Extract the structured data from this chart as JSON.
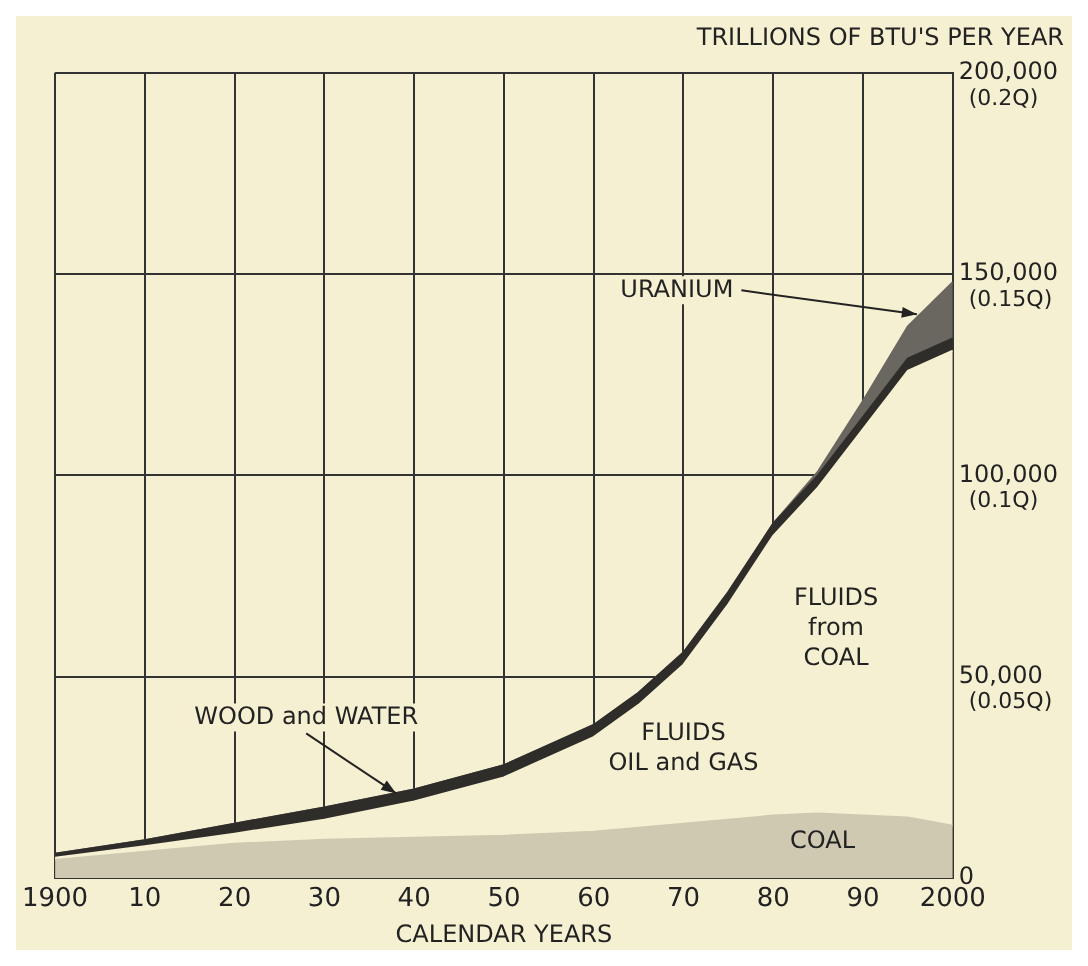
{
  "chart_data": {
    "type": "area",
    "stacked": true,
    "ylabel": "TRILLIONS OF BTU'S PER YEAR",
    "xlabel": "CALENDAR YEARS",
    "x": [
      1900,
      1910,
      1920,
      1930,
      1940,
      1950,
      1960,
      1965,
      1970,
      1975,
      1980,
      1985,
      1990,
      1995,
      2000
    ],
    "series": [
      {
        "color": "#cfc9b2",
        "values": [
          4500,
          6500,
          8500,
          9500,
          10000,
          10500,
          11500,
          12500,
          13500,
          14500,
          15500,
          16000,
          15500,
          15000,
          13000
        ]
      },
      {
        "color": "#f6f0d2",
        "values": [
          500,
          1400,
          2500,
          5000,
          9000,
          14500,
          23500,
          30500,
          39500,
          53500,
          69500,
          81000,
          96000,
          111000,
          118000
        ]
      },
      {
        "color": "#2f2d2a",
        "values": [
          1000,
          1500,
          2500,
          3000,
          3000,
          3000,
          3000,
          3000,
          3000,
          3000,
          3000,
          3000,
          3000,
          3000,
          3000
        ]
      },
      {
        "color": "#6a6660",
        "values": [
          0,
          0,
          0,
          0,
          0,
          0,
          0,
          0,
          0,
          0,
          0,
          1000,
          4000,
          8000,
          14000
        ]
      }
    ],
    "xlim": [
      1900,
      2000
    ],
    "xticks": [
      1900,
      {
        "value": 1910,
        "label": "10"
      },
      {
        "value": 1920,
        "label": "20"
      },
      {
        "value": 1930,
        "label": "30"
      },
      {
        "value": 1940,
        "label": "40"
      },
      {
        "value": 1950,
        "label": "50"
      },
      {
        "value": 1960,
        "label": "60"
      },
      {
        "value": 1970,
        "label": "70"
      },
      {
        "value": 1980,
        "label": "80"
      },
      {
        "value": 1990,
        "label": "90"
      },
      2000
    ],
    "ylim": [
      0,
      200000
    ],
    "yticks": [
      0,
      {
        "value": 50000,
        "label": "50,000"
      },
      {
        "value": 100000,
        "label": "100,000"
      },
      {
        "value": 150000,
        "label": "150,000"
      },
      {
        "value": 200000,
        "label": "200,000"
      }
    ],
    "y2lim": [
      0,
      0.2
    ],
    "y2ticks": [
      {
        "value": 0.05,
        "label": "(0.05Q)"
      },
      {
        "value": 0.1,
        "label": "(0.1Q)"
      },
      {
        "value": 0.15,
        "label": "(0.15Q)"
      },
      {
        "value": 0.2,
        "label": "(0.2Q)"
      }
    ],
    "grid": true,
    "legend": false,
    "annotations": [
      {
        "text": "URANIUM",
        "x": 1996,
        "y": 140000
      },
      {
        "text": "WOOD and WATER",
        "x": 1938,
        "y": 21000
      },
      "FLUIDS\nOIL and GAS",
      "FLUIDS\nfrom\nCOAL",
      "COAL"
    ]
  }
}
